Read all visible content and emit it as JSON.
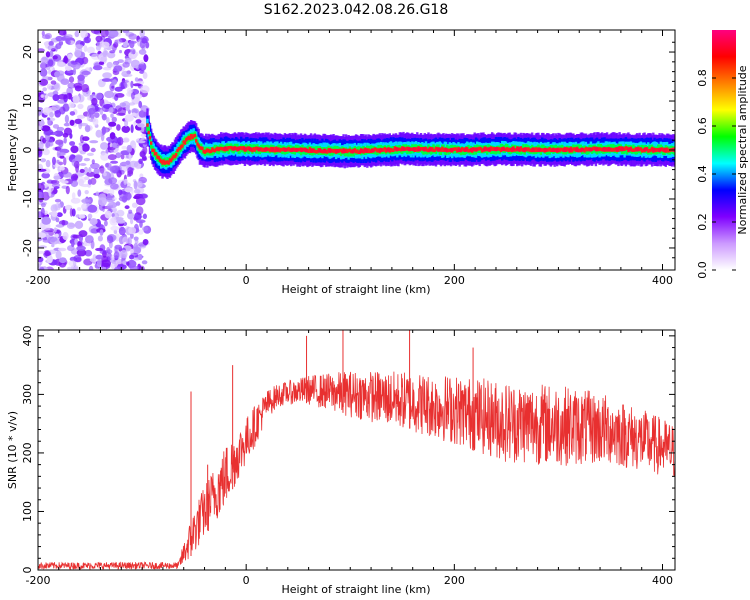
{
  "figure": {
    "title": "S162.2023.042.08.26.G18"
  },
  "chart_data": [
    {
      "type": "heatmap",
      "title": "S162.2023.042.08.26.G18",
      "xlabel": "Height of straight line (km)",
      "ylabel": "Frequency (Hz)",
      "xlim": [
        -200,
        412
      ],
      "ylim": [
        -24.5,
        24.5
      ],
      "xticks": [
        -200,
        0,
        200,
        400
      ],
      "yticks": [
        -20,
        -10,
        0,
        10,
        20
      ],
      "noise_region_x": [
        -200,
        -95
      ],
      "signal_trace": {
        "x": [
          -95,
          -90,
          -85,
          -80,
          -75,
          -70,
          -65,
          -60,
          -55,
          -50,
          -45,
          -40,
          -30,
          -20,
          0,
          50,
          100,
          150,
          200,
          250,
          300,
          350,
          412
        ],
        "freq": [
          5,
          0,
          -1.5,
          -2.5,
          -2.5,
          -1.5,
          0,
          1.5,
          2.5,
          3,
          0.5,
          -0.2,
          0,
          0.3,
          0.2,
          0,
          -0.3,
          0.2,
          0,
          0.2,
          0,
          0.2,
          0
        ]
      },
      "colorbar": {
        "label": "Normalized spectral amplitude",
        "range": [
          0,
          1
        ],
        "ticks": [
          "0.0",
          "0.2",
          "0.4",
          "0.6",
          "0.8"
        ],
        "colors": [
          "#ffffff",
          "#cc99ff",
          "#7f00ff",
          "#0000ff",
          "#00ffff",
          "#00ff00",
          "#ffff00",
          "#ff8000",
          "#ff0000",
          "#ff007f"
        ]
      }
    },
    {
      "type": "line",
      "xlabel": "Height of straight line (km)",
      "ylabel": "SNR (10 * v/v)",
      "xlim": [
        -200,
        412
      ],
      "ylim": [
        0,
        410
      ],
      "xticks": [
        -200,
        0,
        200,
        400
      ],
      "yticks": [
        0,
        100,
        200,
        300,
        400
      ],
      "color": "#e83030",
      "envelope": {
        "x": [
          -200,
          -100,
          -65,
          -60,
          -50,
          -40,
          -30,
          -20,
          -10,
          0,
          10,
          20,
          30,
          40,
          60,
          100,
          150,
          200,
          250,
          300,
          350,
          400,
          412
        ],
        "mean": [
          8,
          8,
          8,
          30,
          70,
          105,
          135,
          165,
          195,
          225,
          255,
          285,
          300,
          305,
          310,
          305,
          295,
          280,
          260,
          255,
          245,
          215,
          205
        ],
        "spread": [
          6,
          6,
          6,
          20,
          40,
          45,
          50,
          55,
          45,
          40,
          35,
          25,
          20,
          20,
          25,
          40,
          50,
          60,
          70,
          70,
          60,
          50,
          50
        ]
      },
      "spikes": [
        {
          "x": -53,
          "y": 305
        },
        {
          "x": -37,
          "y": 180
        },
        {
          "x": -13,
          "y": 350
        },
        {
          "x": 58,
          "y": 400
        },
        {
          "x": 93,
          "y": 410
        },
        {
          "x": 157,
          "y": 410
        },
        {
          "x": 218,
          "y": 380
        }
      ]
    }
  ]
}
